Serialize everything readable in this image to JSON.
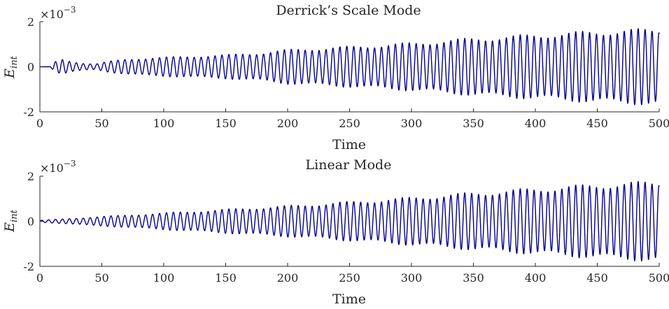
{
  "chart_data": [
    {
      "type": "line",
      "title": "Derrick’s Scale Mode",
      "xlabel": "Time",
      "ylabel": "E",
      "ylabel_sub": "int",
      "exponent_label": "×10",
      "exponent_power": "−3",
      "xlim": [
        0,
        500
      ],
      "ylim": [
        -2,
        2
      ],
      "xticks": [
        "0",
        "50",
        "100",
        "150",
        "200",
        "250",
        "300",
        "350",
        "400",
        "450",
        "500"
      ],
      "yticks": [
        "-2",
        "0",
        "2"
      ],
      "grid": false,
      "series": [
        {
          "color": "#00008b",
          "oscillation_period": 5.6,
          "envelope": {
            "t": [
              0,
              8,
              12,
              18,
              25,
              35,
              45,
              55,
              70,
              90,
              110,
              150,
              180,
              200,
              250,
              300,
              350,
              400,
              450,
              500
            ],
            "amplitude": [
              0,
              0,
              0.2,
              0.3,
              0.22,
              0.15,
              0.12,
              0.22,
              0.32,
              0.38,
              0.42,
              0.5,
              0.6,
              0.72,
              0.85,
              1.0,
              1.2,
              1.35,
              1.5,
              1.6
            ]
          }
        }
      ]
    },
    {
      "type": "line",
      "title": "Linear Mode",
      "xlabel": "Time",
      "ylabel": "E",
      "ylabel_sub": "int",
      "exponent_label": "×10",
      "exponent_power": "−3",
      "xlim": [
        0,
        500
      ],
      "ylim": [
        -2,
        2
      ],
      "xticks": [
        "0",
        "50",
        "100",
        "150",
        "200",
        "250",
        "300",
        "350",
        "400",
        "450",
        "500"
      ],
      "yticks": [
        "-2",
        "0",
        "2"
      ],
      "grid": false,
      "series": [
        {
          "color": "#00008b",
          "oscillation_period": 5.6,
          "envelope": {
            "t": [
              0,
              20,
              50,
              100,
              150,
              200,
              250,
              300,
              350,
              400,
              450,
              500
            ],
            "amplitude": [
              0.04,
              0.1,
              0.2,
              0.35,
              0.5,
              0.65,
              0.82,
              1.0,
              1.2,
              1.38,
              1.55,
              1.68
            ]
          }
        }
      ]
    }
  ]
}
